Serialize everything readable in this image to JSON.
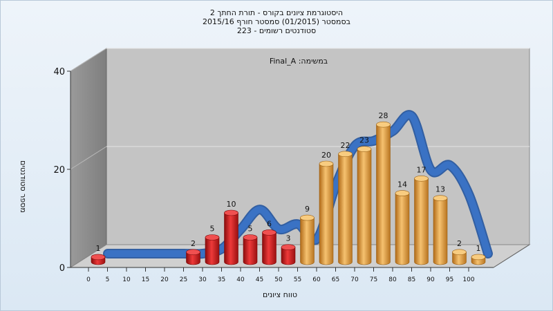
{
  "chart_data": {
    "type": "bar",
    "title": [
      "היסטוגרמת ציונים בקורס - תורת החתך 2",
      "בסמסטר  (01/2015)  סמסטר חורף 2015/16",
      "סטודנטים רשומים - 223"
    ],
    "subtitle": "Final_A :במשימה",
    "xlabel": "טווח ציונים",
    "ylabel": "מספר סטודנטים",
    "ylim": [
      0,
      40
    ],
    "yticks": [
      0,
      20,
      40
    ],
    "xticks": [
      "0",
      "5",
      "10",
      "15",
      "20",
      "25",
      "30",
      "35",
      "40",
      "45",
      "50",
      "55",
      "60",
      "65",
      "70",
      "75",
      "80",
      "85",
      "90",
      "95",
      "100"
    ],
    "bars": [
      {
        "x": "0",
        "value": 1,
        "color": "#d42020"
      },
      {
        "x": "25",
        "value": 2,
        "color": "#d42020"
      },
      {
        "x": "30",
        "value": 5,
        "color": "#d42020"
      },
      {
        "x": "35",
        "value": 10,
        "color": "#d42020"
      },
      {
        "x": "40",
        "value": 5,
        "color": "#d42020"
      },
      {
        "x": "45",
        "value": 6,
        "color": "#d42020"
      },
      {
        "x": "50",
        "value": 3,
        "color": "#d42020"
      },
      {
        "x": "55",
        "value": 9,
        "color": "#e8a040"
      },
      {
        "x": "60",
        "value": 20,
        "color": "#e8a040"
      },
      {
        "x": "65",
        "value": 22,
        "color": "#e8a040"
      },
      {
        "x": "70",
        "value": 23,
        "color": "#e8a040"
      },
      {
        "x": "75",
        "value": 28,
        "color": "#e8a040"
      },
      {
        "x": "80",
        "value": 14,
        "color": "#e8a040"
      },
      {
        "x": "85",
        "value": 17,
        "color": "#e8a040"
      },
      {
        "x": "90",
        "value": 13,
        "color": "#e8a040"
      },
      {
        "x": "95",
        "value": 2,
        "color": "#e8a040"
      },
      {
        "x": "100",
        "value": 1,
        "color": "#e8a040"
      }
    ],
    "curve": {
      "x": [
        "0",
        "5",
        "10",
        "15",
        "20",
        "25",
        "30",
        "35",
        "40",
        "45",
        "50",
        "55",
        "60",
        "65",
        "70",
        "75",
        "80",
        "85",
        "90",
        "95",
        "100"
      ],
      "values": [
        0,
        0,
        0,
        0,
        0,
        0,
        1,
        5,
        9,
        5,
        6,
        3,
        14,
        22,
        23,
        25,
        28,
        17,
        18,
        12,
        0
      ],
      "color": "#3a72c4"
    },
    "grid": true,
    "colors": {
      "fail": "#d42020",
      "pass": "#e8a040",
      "curve": "#3a72c4",
      "wall": "#8c8c8c",
      "back": "#c4c4c4"
    }
  }
}
